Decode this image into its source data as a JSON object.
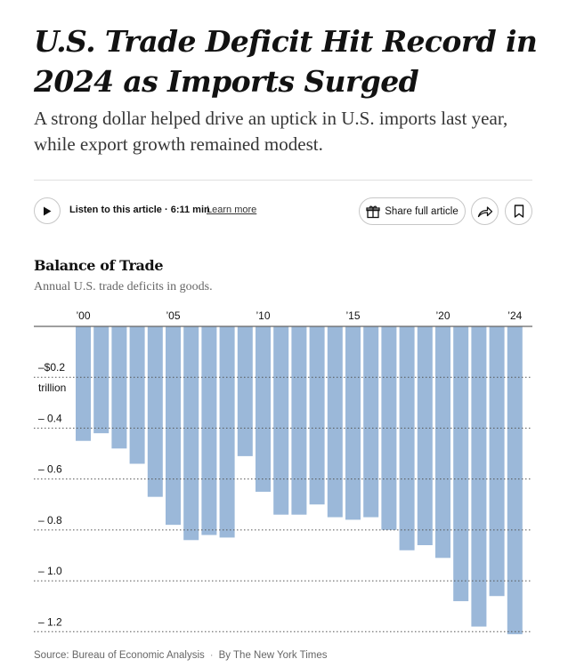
{
  "article": {
    "headline": "U.S. Trade Deficit Hit Record in 2024 as Imports Surged",
    "subhead": "A strong dollar helped drive an uptick in U.S. imports last year, while export growth remained modest."
  },
  "toolbar": {
    "listen_label": "Listen to this article",
    "listen_duration": "6:11 min",
    "learn_more": "Learn more",
    "share_label": "Share full article"
  },
  "icons": {
    "play": "play-icon",
    "gift": "gift-icon",
    "share": "share-arrow-icon",
    "bookmark": "bookmark-icon"
  },
  "colors": {
    "bar": "#9bb8d9",
    "text": "#121212"
  },
  "chart_data": {
    "type": "bar",
    "title": "Balance of Trade",
    "subtitle": "Annual U.S. trade deficits in goods.",
    "unit_label": "trillion",
    "categories": [
      "2000",
      "2001",
      "2002",
      "2003",
      "2004",
      "2005",
      "2006",
      "2007",
      "2008",
      "2009",
      "2010",
      "2011",
      "2012",
      "2013",
      "2014",
      "2015",
      "2016",
      "2017",
      "2018",
      "2019",
      "2020",
      "2021",
      "2022",
      "2023",
      "2024"
    ],
    "values": [
      -0.45,
      -0.42,
      -0.48,
      -0.54,
      -0.67,
      -0.78,
      -0.84,
      -0.82,
      -0.83,
      -0.51,
      -0.65,
      -0.74,
      -0.74,
      -0.7,
      -0.75,
      -0.76,
      -0.75,
      -0.8,
      -0.88,
      -0.86,
      -0.91,
      -1.08,
      -1.18,
      -1.06,
      -1.21
    ],
    "x_tick_labels": [
      {
        "category": "2000",
        "label": "’00"
      },
      {
        "category": "2005",
        "label": "’05"
      },
      {
        "category": "2010",
        "label": "’10"
      },
      {
        "category": "2015",
        "label": "’15"
      },
      {
        "category": "2020",
        "label": "’20"
      },
      {
        "category": "2024",
        "label": "’24"
      }
    ],
    "y_ticks": [
      {
        "value": -0.2,
        "label": "–$0.2"
      },
      {
        "value": -0.4,
        "label": "– 0.4"
      },
      {
        "value": -0.6,
        "label": "– 0.6"
      },
      {
        "value": -0.8,
        "label": "– 0.8"
      },
      {
        "value": -1.0,
        "label": "– 1.0"
      },
      {
        "value": -1.2,
        "label": "– 1.2"
      }
    ],
    "ylim": [
      -1.22,
      0
    ],
    "grid": true
  },
  "footer": {
    "source": "Source: Bureau of Economic Analysis",
    "byline": "By The New York Times"
  }
}
